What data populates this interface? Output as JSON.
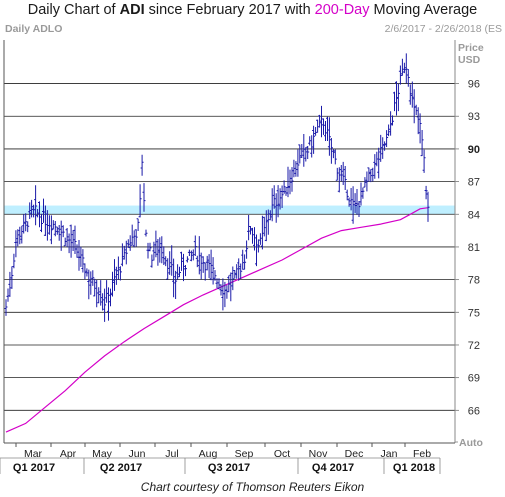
{
  "title": {
    "prefix": "Daily Chart of ",
    "symbol": "ADI",
    "middle": " since February 2017 with ",
    "ma": "200-Day",
    "suffix": " Moving Average"
  },
  "subtitle_left": "Daily ADLO",
  "subtitle_right": "2/6/2017 - 2/26/2018 (ES",
  "price_label": "Price",
  "currency_label": "USD",
  "auto_label": "Auto",
  "credit": "Chart courtesy of Thomson Reuters Eikon",
  "colors": {
    "price": "#1a1aa8",
    "ma": "#d400c8",
    "band": "#bfefff",
    "grid": "#222222"
  },
  "chart_data": {
    "type": "bar",
    "y_axis": {
      "ticks": [
        96,
        93,
        90,
        87,
        84,
        81,
        78,
        75,
        72,
        69,
        66
      ],
      "range": [
        63,
        100
      ],
      "bold_tick": 90,
      "position": "right"
    },
    "grid": true,
    "months": [
      "Mar",
      "Apr",
      "May",
      "Jun",
      "Jul",
      "Aug",
      "Sep",
      "Oct",
      "Nov",
      "Dec",
      "Jan",
      "Feb"
    ],
    "quarters": [
      "Q1 2017",
      "Q2 2017",
      "Q3 2017",
      "Q4 2017",
      "Q1 2018"
    ],
    "support_band": [
      84.0,
      84.8
    ],
    "series": [
      {
        "name": "ADI",
        "type": "ohlc",
        "points": [
          [
            0,
            75.5
          ],
          [
            5,
            78
          ],
          [
            10,
            81.5
          ],
          [
            15,
            82.5
          ],
          [
            20,
            83
          ],
          [
            25,
            84
          ],
          [
            30,
            84.2
          ],
          [
            35,
            83.8
          ],
          [
            40,
            83.5
          ],
          [
            45,
            83.2
          ],
          [
            50,
            83
          ],
          [
            55,
            82.5
          ],
          [
            60,
            82
          ],
          [
            65,
            81.5
          ],
          [
            70,
            81
          ],
          [
            75,
            80
          ],
          [
            80,
            79
          ],
          [
            85,
            78
          ],
          [
            90,
            77.5
          ],
          [
            95,
            77
          ],
          [
            100,
            76
          ],
          [
            105,
            76.5
          ],
          [
            110,
            78
          ],
          [
            115,
            79
          ],
          [
            120,
            80
          ],
          [
            125,
            81.5
          ],
          [
            130,
            82
          ],
          [
            135,
            83
          ],
          [
            138,
            89
          ],
          [
            142,
            82
          ],
          [
            147,
            80
          ],
          [
            152,
            81
          ],
          [
            157,
            81
          ],
          [
            162,
            80
          ],
          [
            167,
            79
          ],
          [
            172,
            78
          ],
          [
            177,
            79
          ],
          [
            182,
            79.5
          ],
          [
            187,
            80
          ],
          [
            192,
            80.5
          ],
          [
            197,
            80
          ],
          [
            202,
            79.5
          ],
          [
            207,
            79
          ],
          [
            212,
            78.5
          ],
          [
            217,
            77.5
          ],
          [
            222,
            77
          ],
          [
            227,
            77.5
          ],
          [
            232,
            78
          ],
          [
            237,
            79
          ],
          [
            242,
            80
          ],
          [
            247,
            83
          ],
          [
            252,
            82
          ],
          [
            257,
            81
          ],
          [
            262,
            82.5
          ],
          [
            267,
            84
          ],
          [
            272,
            85
          ],
          [
            277,
            85.5
          ],
          [
            282,
            86
          ],
          [
            287,
            87
          ],
          [
            292,
            88
          ],
          [
            297,
            89
          ],
          [
            302,
            89.5
          ],
          [
            307,
            90
          ],
          [
            312,
            91
          ],
          [
            317,
            92
          ],
          [
            322,
            92.5
          ],
          [
            327,
            91
          ],
          [
            332,
            89.5
          ],
          [
            337,
            88
          ],
          [
            342,
            87
          ],
          [
            347,
            86
          ],
          [
            352,
            84.5
          ],
          [
            357,
            85
          ],
          [
            362,
            86
          ],
          [
            367,
            87
          ],
          [
            372,
            88
          ],
          [
            377,
            89
          ],
          [
            382,
            90
          ],
          [
            387,
            91
          ],
          [
            392,
            93
          ],
          [
            397,
            95
          ],
          [
            402,
            97
          ],
          [
            405,
            98
          ],
          [
            408,
            97
          ],
          [
            411,
            95
          ],
          [
            414,
            93.5
          ],
          [
            417,
            93
          ],
          [
            420,
            92
          ],
          [
            423,
            90
          ],
          [
            426,
            86.5
          ],
          [
            429,
            83.5
          ]
        ]
      },
      {
        "name": "200-Day Moving Average",
        "type": "line",
        "points": [
          [
            0,
            64
          ],
          [
            20,
            64.8
          ],
          [
            40,
            66.3
          ],
          [
            60,
            67.8
          ],
          [
            80,
            69.5
          ],
          [
            100,
            71
          ],
          [
            120,
            72.3
          ],
          [
            140,
            73.5
          ],
          [
            160,
            74.6
          ],
          [
            180,
            75.7
          ],
          [
            200,
            76.6
          ],
          [
            220,
            77.4
          ],
          [
            240,
            78.2
          ],
          [
            260,
            79
          ],
          [
            280,
            79.8
          ],
          [
            300,
            80.8
          ],
          [
            320,
            81.8
          ],
          [
            340,
            82.5
          ],
          [
            360,
            82.8
          ],
          [
            380,
            83.1
          ],
          [
            400,
            83.5
          ],
          [
            410,
            84
          ],
          [
            420,
            84.5
          ],
          [
            428,
            84.6
          ]
        ]
      }
    ]
  }
}
